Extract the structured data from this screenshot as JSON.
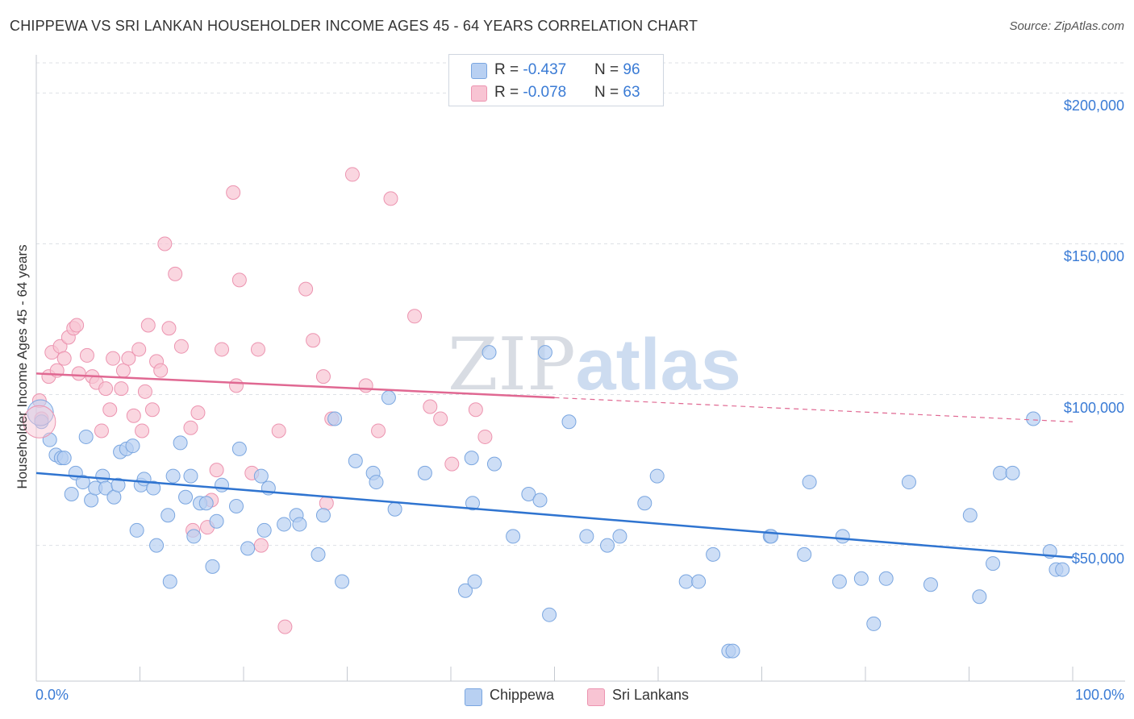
{
  "title": "CHIPPEWA VS SRI LANKAN HOUSEHOLDER INCOME AGES 45 - 64 YEARS CORRELATION CHART",
  "source": "Source: ZipAtlas.com",
  "watermark": {
    "zip": "ZIP",
    "atlas": "atlas"
  },
  "legend_top": {
    "rows": [
      {
        "r_label": "R = ",
        "r_value": "-0.437",
        "n_label": "N = ",
        "n_value": "96"
      },
      {
        "r_label": "R = ",
        "r_value": "-0.078",
        "n_label": "N = ",
        "n_value": "63"
      }
    ]
  },
  "legend_bottom": {
    "items": [
      "Chippewa",
      "Sri Lankans"
    ]
  },
  "colors": {
    "chippewa_fill": "#b8d0f2",
    "chippewa_stroke": "#7aa6e0",
    "chippewa_line": "#2f74d0",
    "srilankan_fill": "#f8c4d3",
    "srilankan_stroke": "#ec94b0",
    "srilankan_line": "#e06892",
    "tick_text": "#3a7bd5"
  },
  "chart_data": {
    "type": "scatter",
    "title": "CHIPPEWA VS SRI LANKAN HOUSEHOLDER INCOME AGES 45 - 64 YEARS CORRELATION CHART",
    "xlabel": "",
    "ylabel": "Householder Income Ages 45 - 64 years",
    "x_tick_labels": [
      "0.0%",
      "100.0%"
    ],
    "y_tick_labels": [
      "$50,000",
      "$100,000",
      "$150,000",
      "$200,000"
    ],
    "y_ticks": [
      50000,
      100000,
      150000,
      200000
    ],
    "xlim": [
      0,
      100
    ],
    "ylim": [
      5000,
      210000
    ],
    "grid": true,
    "legend_position": "top-center",
    "series": [
      {
        "name": "Chippewa",
        "r": -0.437,
        "n": 96,
        "trend": {
          "x": [
            0,
            100
          ],
          "y": [
            74000,
            46000
          ],
          "dashed_after": null
        },
        "points": [
          [
            0.5,
            91000
          ],
          [
            1.3,
            85000
          ],
          [
            1.9,
            80000
          ],
          [
            2.4,
            79000
          ],
          [
            2.7,
            79000
          ],
          [
            3.4,
            67000
          ],
          [
            3.8,
            74000
          ],
          [
            4.5,
            71000
          ],
          [
            4.8,
            86000
          ],
          [
            5.3,
            65000
          ],
          [
            5.7,
            69000
          ],
          [
            6.4,
            73000
          ],
          [
            6.7,
            69000
          ],
          [
            7.5,
            66000
          ],
          [
            7.9,
            70000
          ],
          [
            8.1,
            81000
          ],
          [
            8.7,
            82000
          ],
          [
            9.3,
            83000
          ],
          [
            9.7,
            55000
          ],
          [
            10.1,
            70000
          ],
          [
            10.4,
            72000
          ],
          [
            11.3,
            69000
          ],
          [
            11.6,
            50000
          ],
          [
            12.7,
            60000
          ],
          [
            12.9,
            38000
          ],
          [
            13.2,
            73000
          ],
          [
            13.9,
            84000
          ],
          [
            14.4,
            66000
          ],
          [
            14.9,
            73000
          ],
          [
            15.2,
            53000
          ],
          [
            15.8,
            64000
          ],
          [
            16.4,
            64000
          ],
          [
            17.4,
            58000
          ],
          [
            17.9,
            70000
          ],
          [
            17.0,
            43000
          ],
          [
            19.6,
            82000
          ],
          [
            19.3,
            63000
          ],
          [
            20.4,
            49000
          ],
          [
            22.0,
            55000
          ],
          [
            22.4,
            69000
          ],
          [
            21.7,
            73000
          ],
          [
            23.9,
            57000
          ],
          [
            25.1,
            60000
          ],
          [
            25.4,
            57000
          ],
          [
            27.7,
            60000
          ],
          [
            27.2,
            47000
          ],
          [
            28.8,
            92000
          ],
          [
            30.8,
            78000
          ],
          [
            32.5,
            74000
          ],
          [
            32.8,
            71000
          ],
          [
            34.6,
            62000
          ],
          [
            37.5,
            74000
          ],
          [
            41.4,
            35000
          ],
          [
            42.0,
            79000
          ],
          [
            42.1,
            64000
          ],
          [
            42.3,
            38000
          ],
          [
            43.7,
            114000
          ],
          [
            44.2,
            77000
          ],
          [
            46.0,
            53000
          ],
          [
            47.5,
            67000
          ],
          [
            48.6,
            65000
          ],
          [
            49.1,
            114000
          ],
          [
            49.5,
            27000
          ],
          [
            51.4,
            91000
          ],
          [
            53.1,
            53000
          ],
          [
            55.1,
            50000
          ],
          [
            56.3,
            53000
          ],
          [
            58.7,
            64000
          ],
          [
            59.9,
            73000
          ],
          [
            62.7,
            38000
          ],
          [
            63.9,
            38000
          ],
          [
            65.3,
            47000
          ],
          [
            66.8,
            15000
          ],
          [
            67.2,
            15000
          ],
          [
            70.8,
            53000
          ],
          [
            70.9,
            53000
          ],
          [
            74.1,
            47000
          ],
          [
            74.6,
            71000
          ],
          [
            77.5,
            38000
          ],
          [
            77.8,
            53000
          ],
          [
            79.6,
            39000
          ],
          [
            80.8,
            24000
          ],
          [
            82.0,
            39000
          ],
          [
            84.2,
            71000
          ],
          [
            86.3,
            37000
          ],
          [
            90.1,
            60000
          ],
          [
            91.0,
            33000
          ],
          [
            92.3,
            44000
          ],
          [
            93.0,
            74000
          ],
          [
            94.2,
            74000
          ],
          [
            96.2,
            92000
          ],
          [
            97.8,
            48000
          ],
          [
            98.4,
            42000
          ],
          [
            99.0,
            42000
          ],
          [
            34.0,
            99000
          ],
          [
            29.5,
            38000
          ]
        ]
      },
      {
        "name": "Sri Lankans",
        "r": -0.078,
        "n": 63,
        "trend": {
          "x": [
            0,
            50
          ],
          "y": [
            107000,
            99000
          ],
          "dashed_to": [
            100,
            91000
          ]
        },
        "points": [
          [
            0.3,
            98000
          ],
          [
            0.5,
            92000
          ],
          [
            1.2,
            106000
          ],
          [
            1.5,
            114000
          ],
          [
            2.0,
            108000
          ],
          [
            2.3,
            116000
          ],
          [
            2.7,
            112000
          ],
          [
            3.1,
            119000
          ],
          [
            3.6,
            122000
          ],
          [
            3.9,
            123000
          ],
          [
            4.1,
            107000
          ],
          [
            4.9,
            113000
          ],
          [
            5.4,
            106000
          ],
          [
            5.8,
            104000
          ],
          [
            6.3,
            88000
          ],
          [
            6.7,
            102000
          ],
          [
            7.1,
            95000
          ],
          [
            7.4,
            112000
          ],
          [
            8.2,
            102000
          ],
          [
            8.4,
            108000
          ],
          [
            8.9,
            112000
          ],
          [
            9.4,
            93000
          ],
          [
            9.9,
            115000
          ],
          [
            10.2,
            88000
          ],
          [
            10.5,
            101000
          ],
          [
            10.8,
            123000
          ],
          [
            11.2,
            95000
          ],
          [
            11.6,
            111000
          ],
          [
            12.0,
            108000
          ],
          [
            12.4,
            150000
          ],
          [
            12.8,
            122000
          ],
          [
            13.4,
            140000
          ],
          [
            14.0,
            116000
          ],
          [
            14.9,
            89000
          ],
          [
            15.6,
            94000
          ],
          [
            16.5,
            56000
          ],
          [
            16.9,
            65000
          ],
          [
            17.4,
            75000
          ],
          [
            17.9,
            115000
          ],
          [
            19.0,
            167000
          ],
          [
            19.3,
            103000
          ],
          [
            19.6,
            138000
          ],
          [
            20.8,
            74000
          ],
          [
            21.4,
            115000
          ],
          [
            21.7,
            50000
          ],
          [
            23.4,
            88000
          ],
          [
            24.0,
            23000
          ],
          [
            26.0,
            135000
          ],
          [
            26.7,
            118000
          ],
          [
            27.7,
            106000
          ],
          [
            28.5,
            92000
          ],
          [
            30.5,
            173000
          ],
          [
            31.8,
            103000
          ],
          [
            33.0,
            88000
          ],
          [
            34.2,
            165000
          ],
          [
            36.5,
            126000
          ],
          [
            38.0,
            96000
          ],
          [
            39.0,
            92000
          ],
          [
            40.1,
            77000
          ],
          [
            42.4,
            95000
          ],
          [
            43.3,
            86000
          ],
          [
            15.1,
            55000
          ],
          [
            28.0,
            64000
          ]
        ]
      }
    ]
  }
}
